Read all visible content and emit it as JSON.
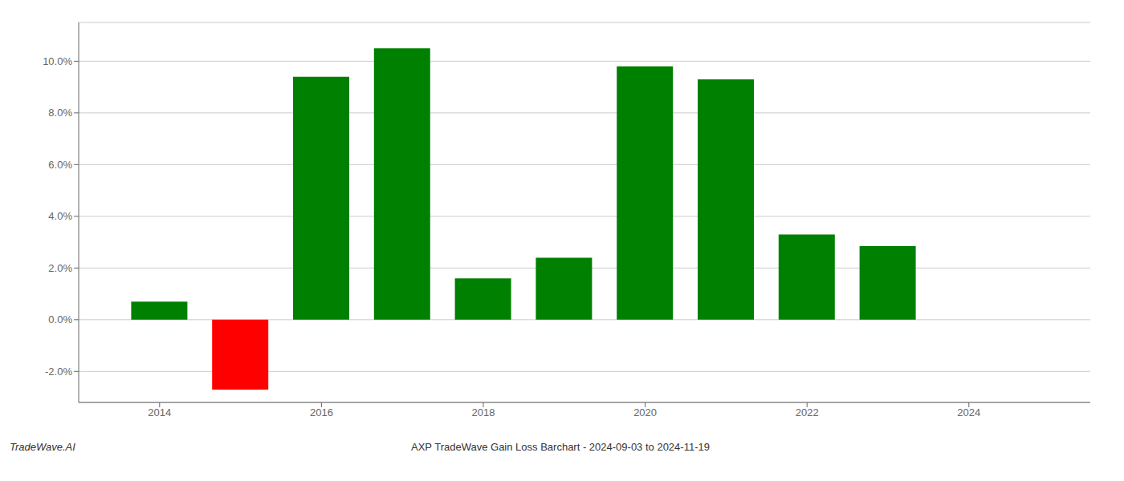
{
  "chart_data": {
    "type": "bar",
    "title": "AXP TradeWave Gain Loss Barchart - 2024-09-03 to 2024-11-19",
    "annotations": [
      "TradeWave.AI"
    ],
    "x": [
      2014,
      2015,
      2016,
      2017,
      2018,
      2019,
      2020,
      2021,
      2022,
      2023
    ],
    "values": [
      0.007,
      -0.027,
      0.094,
      0.105,
      0.016,
      0.024,
      0.098,
      0.093,
      0.033,
      0.0285
    ],
    "colors": [
      "#008000",
      "#ff0000",
      "#008000",
      "#008000",
      "#008000",
      "#008000",
      "#008000",
      "#008000",
      "#008000",
      "#008000"
    ],
    "xlim": [
      2013.0,
      2025.5
    ],
    "xticks": [
      2014,
      2016,
      2018,
      2020,
      2022,
      2024
    ],
    "ylim": [
      -0.032,
      0.115
    ],
    "yticks": [
      {
        "value": -0.02,
        "label": "-2.0%"
      },
      {
        "value": 0,
        "label": "0.0%"
      },
      {
        "value": 0.02,
        "label": "2.0%"
      },
      {
        "value": 0.04,
        "label": "4.0%"
      },
      {
        "value": 0.06,
        "label": "6.0%"
      },
      {
        "value": 0.08,
        "label": "8.0%"
      },
      {
        "value": 0.1,
        "label": "10.0%"
      }
    ],
    "grid": true
  }
}
